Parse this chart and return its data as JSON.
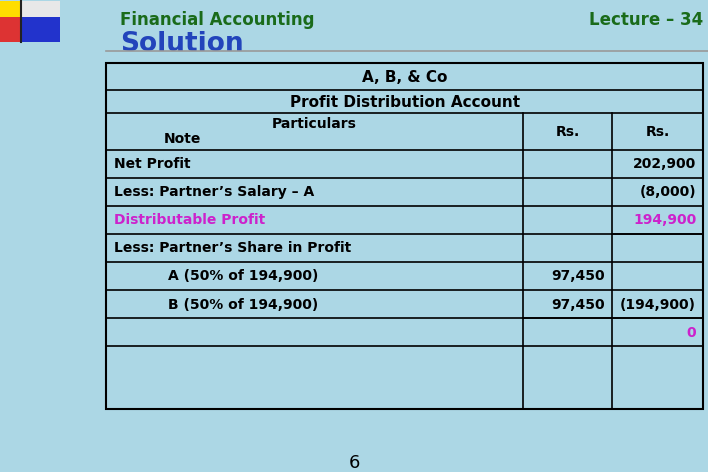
{
  "bg_color": "#acd7e5",
  "header_text": "Financial Accounting",
  "lecture_text": "Lecture – 34",
  "solution_text": "Solution",
  "header_color": "#1a6b1a",
  "solution_color": "#2244bb",
  "page_number": "6",
  "table_title": "A, B, & Co",
  "table_subtitle": "Profit Distribution Account",
  "rows": [
    {
      "label": "Net Profit",
      "indent": 0,
      "col1": "",
      "col2": "202,900",
      "color": "black"
    },
    {
      "label": "Less: Partner’s Salary – A",
      "indent": 0,
      "col1": "",
      "col2": "(8,000)",
      "color": "black"
    },
    {
      "label": "Distributable Profit",
      "indent": 0,
      "col1": "",
      "col2": "194,900",
      "color": "#cc22cc"
    },
    {
      "label": "Less: Partner’s Share in Profit",
      "indent": 0,
      "col1": "",
      "col2": "",
      "color": "black"
    },
    {
      "label": "A (50% of 194,900)",
      "indent": 1,
      "col1": "97,450",
      "col2": "",
      "color": "black"
    },
    {
      "label": "B (50% of 194,900)",
      "indent": 1,
      "col1": "97,450",
      "col2": "(194,900)",
      "color": "black"
    },
    {
      "label": "",
      "indent": 0,
      "col1": "",
      "col2": "0",
      "color": "#cc22cc"
    }
  ],
  "logo_tl": [
    [
      1,
      "#ffdd00",
      "#f0f0f0"
    ],
    [
      2,
      "#ff4444",
      "#2244dd"
    ]
  ],
  "line_color": "#999999"
}
